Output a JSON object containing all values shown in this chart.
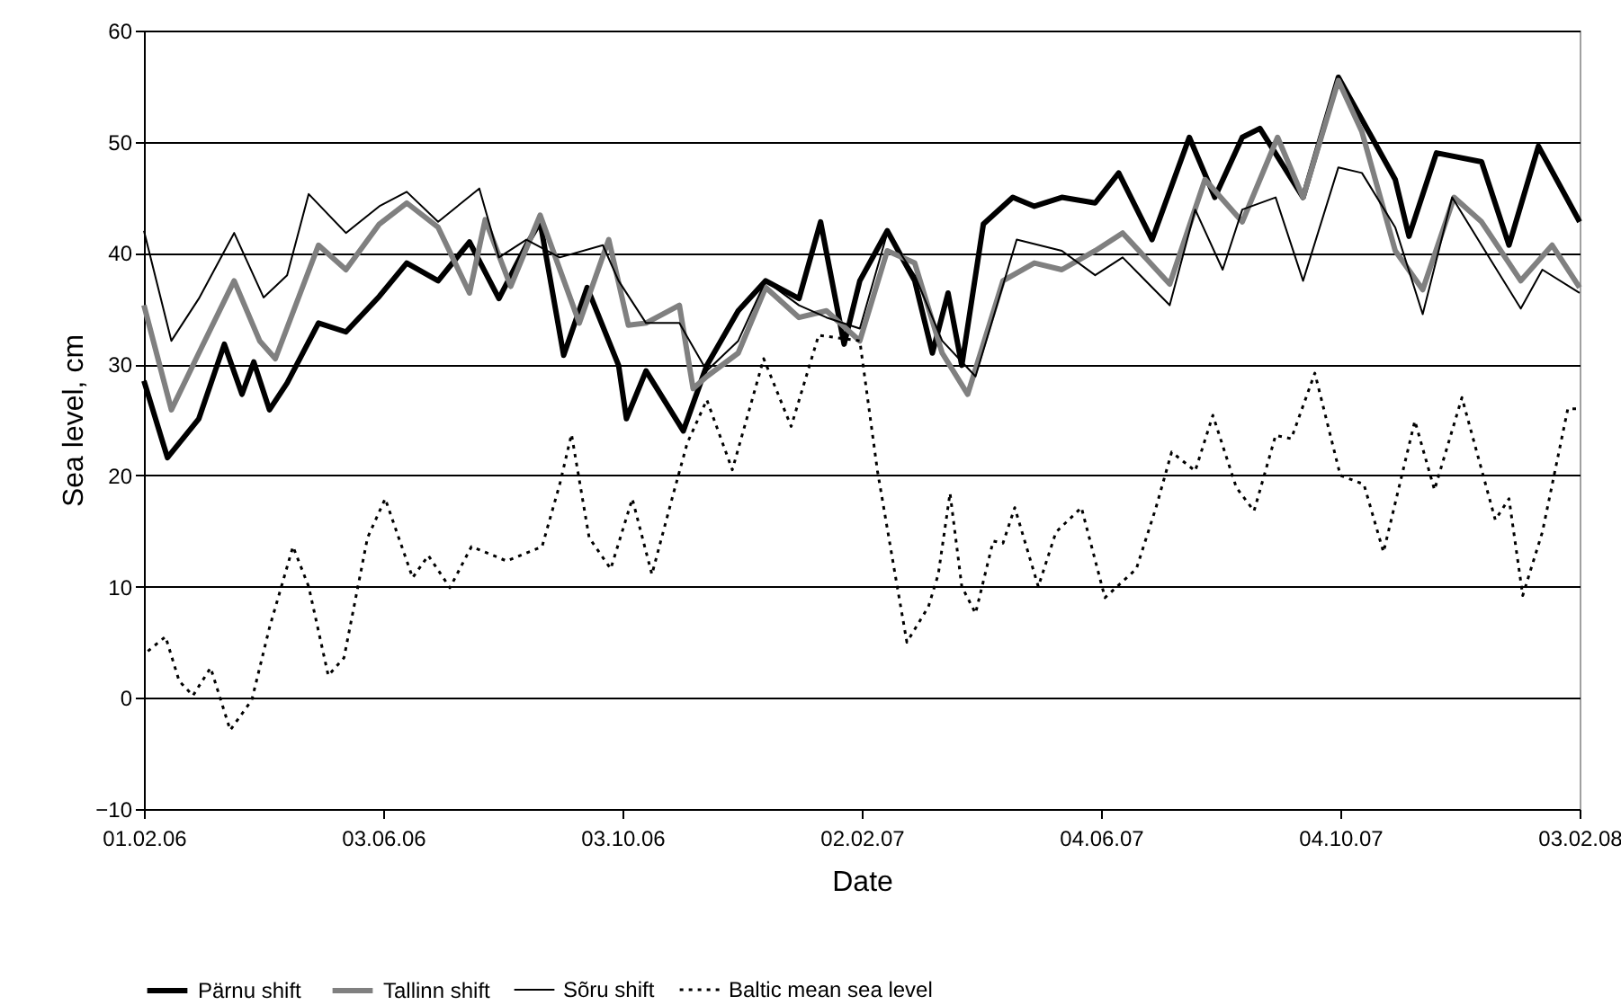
{
  "chart_data": {
    "type": "line",
    "xlabel": "Date",
    "ylabel": "Sea level, cm",
    "ylim": [
      -10,
      60
    ],
    "yticks": [
      -10,
      0,
      10,
      20,
      30,
      40,
      50,
      60
    ],
    "xlim": [
      "2006-02-01",
      "2008-02-03"
    ],
    "xticks": [
      {
        "value": "2006-02-01",
        "label": "01.02.06"
      },
      {
        "value": "2006-06-03",
        "label": "03.06.06"
      },
      {
        "value": "2006-10-03",
        "label": "03.10.06"
      },
      {
        "value": "2007-02-02",
        "label": "02.02.07"
      },
      {
        "value": "2007-06-04",
        "label": "04.06.07"
      },
      {
        "value": "2007-10-04",
        "label": "04.10.07"
      },
      {
        "value": "2008-02-03",
        "label": "03.02.08"
      }
    ],
    "grid": "y",
    "legend": "bottom",
    "marker": "none",
    "series": [
      {
        "name": "Pärnu shift",
        "color": "#000000",
        "line_style": "solid",
        "x": [
          "2006-02-01",
          "2006-02-13",
          "2006-03-01",
          "2006-03-14",
          "2006-03-23",
          "2006-03-29",
          "2006-04-06",
          "2006-04-15",
          "2006-05-01",
          "2006-05-15",
          "2006-06-01",
          "2006-06-15",
          "2006-07-01",
          "2006-07-17",
          "2006-08-01",
          "2006-08-15",
          "2006-08-22",
          "2006-09-03",
          "2006-09-15",
          "2006-10-01",
          "2006-10-05",
          "2006-10-15",
          "2006-11-03",
          "2006-11-15",
          "2006-12-01",
          "2006-12-15",
          "2007-01-01",
          "2007-01-12",
          "2007-01-24",
          "2007-02-01",
          "2007-02-15",
          "2007-03-01",
          "2007-03-10",
          "2007-03-18",
          "2007-03-25",
          "2007-04-05",
          "2007-04-20",
          "2007-05-01",
          "2007-05-15",
          "2007-06-01",
          "2007-06-13",
          "2007-06-30",
          "2007-07-19",
          "2007-08-01",
          "2007-08-15",
          "2007-08-24",
          "2007-09-15",
          "2007-10-03",
          "2007-10-15",
          "2007-11-01",
          "2007-11-08",
          "2007-11-22",
          "2007-12-15",
          "2007-12-29",
          "2008-01-13",
          "2008-02-03"
        ],
        "values": [
          28.5,
          21.6,
          25.1,
          31.8,
          27.3,
          30.2,
          25.9,
          28.3,
          33.7,
          32.9,
          36.1,
          39.1,
          37.5,
          41,
          35.9,
          40.7,
          42.8,
          30.8,
          36.9,
          29.9,
          25.1,
          29.4,
          24,
          29.9,
          34.8,
          37.5,
          35.9,
          42.8,
          31.8,
          37.5,
          42,
          37.5,
          31,
          36.4,
          29.9,
          42.6,
          45,
          44.2,
          45,
          44.5,
          47.2,
          41.2,
          50.4,
          45,
          50.4,
          51.2,
          45,
          55.8,
          52,
          46.6,
          41.5,
          49,
          48.2,
          40.7,
          49.6,
          42.8
        ]
      },
      {
        "name": "Tallinn shift",
        "color": "#808080",
        "line_style": "solid",
        "x": [
          "2006-02-01",
          "2006-02-15",
          "2006-03-01",
          "2006-03-19",
          "2006-04-01",
          "2006-04-09",
          "2006-05-01",
          "2006-05-15",
          "2006-06-01",
          "2006-06-15",
          "2006-07-01",
          "2006-07-17",
          "2006-07-25",
          "2006-08-07",
          "2006-08-22",
          "2006-09-11",
          "2006-09-26",
          "2006-10-06",
          "2006-10-15",
          "2006-11-01",
          "2006-11-08",
          "2006-11-15",
          "2006-12-01",
          "2006-12-15",
          "2007-01-01",
          "2007-01-15",
          "2007-02-01",
          "2007-02-15",
          "2007-03-01",
          "2007-03-15",
          "2007-03-28",
          "2007-04-15",
          "2007-05-01",
          "2007-05-15",
          "2007-06-01",
          "2007-06-15",
          "2007-07-09",
          "2007-07-27",
          "2007-08-15",
          "2007-09-02",
          "2007-09-15",
          "2007-10-03",
          "2007-10-15",
          "2007-11-01",
          "2007-11-15",
          "2007-12-01",
          "2007-12-15",
          "2008-01-04",
          "2008-01-20",
          "2008-02-03"
        ],
        "values": [
          35.3,
          25.9,
          31,
          37.5,
          32.1,
          30.5,
          40.7,
          38.5,
          42.6,
          44.5,
          42.3,
          36.4,
          43,
          37,
          43.4,
          33.7,
          41.2,
          33.5,
          33.7,
          35.3,
          27.8,
          28.9,
          31,
          36.9,
          34.2,
          34.8,
          32.1,
          40.2,
          39.1,
          31,
          27.3,
          37.5,
          39.1,
          38.5,
          40.2,
          41.8,
          37.2,
          46.6,
          42.8,
          50.4,
          45,
          55.5,
          50.9,
          40.2,
          36.7,
          45,
          42.8,
          37.5,
          40.7,
          36.9
        ]
      },
      {
        "name": "Sõru shift",
        "color": "#000000",
        "line_style": "solid",
        "x": [
          "2006-02-01",
          "2006-02-15",
          "2006-03-01",
          "2006-03-19",
          "2006-04-03",
          "2006-04-15",
          "2006-04-26",
          "2006-05-15",
          "2006-06-01",
          "2006-06-15",
          "2006-07-01",
          "2006-07-22",
          "2006-08-01",
          "2006-08-15",
          "2006-09-01",
          "2006-09-23",
          "2006-10-01",
          "2006-10-15",
          "2006-11-01",
          "2006-11-15",
          "2006-12-01",
          "2006-12-15",
          "2007-01-01",
          "2007-01-15",
          "2007-02-01",
          "2007-02-15",
          "2007-03-01",
          "2007-03-15",
          "2007-04-01",
          "2007-04-22",
          "2007-05-15",
          "2007-06-01",
          "2007-06-15",
          "2007-07-09",
          "2007-07-22",
          "2007-08-05",
          "2007-08-15",
          "2007-09-01",
          "2007-09-15",
          "2007-10-03",
          "2007-10-15",
          "2007-11-01",
          "2007-11-15",
          "2007-11-30",
          "2007-12-15",
          "2008-01-04",
          "2008-01-15",
          "2008-02-03"
        ],
        "values": [
          42,
          32.1,
          35.9,
          41.8,
          36,
          38,
          45.3,
          41.8,
          44.2,
          45.5,
          42.8,
          45.8,
          39.6,
          41.2,
          39.6,
          40.7,
          37.5,
          33.7,
          33.7,
          29.4,
          32.1,
          37.5,
          35.3,
          34.2,
          33.2,
          41.8,
          38,
          32.1,
          28.9,
          41.2,
          40.2,
          38,
          39.6,
          35.3,
          43.9,
          38.5,
          43.9,
          45,
          37.5,
          47.7,
          47.2,
          42.3,
          34.5,
          45,
          40.7,
          35,
          38.5,
          36.4
        ]
      },
      {
        "name": "Baltic mean sea level",
        "color": "#000000",
        "line_style": "dotted",
        "x": [
          "2006-02-03",
          "2006-02-12",
          "2006-02-19",
          "2006-02-26",
          "2006-03-07",
          "2006-03-17",
          "2006-03-28",
          "2006-04-06",
          "2006-04-18",
          "2006-04-26",
          "2006-05-06",
          "2006-05-14",
          "2006-05-26",
          "2006-06-04",
          "2006-06-18",
          "2006-06-26",
          "2006-07-07",
          "2006-07-18",
          "2006-08-05",
          "2006-08-23",
          "2006-09-01",
          "2006-09-07",
          "2006-09-16",
          "2006-09-27",
          "2006-10-08",
          "2006-10-18",
          "2006-10-29",
          "2006-11-05",
          "2006-11-15",
          "2006-11-28",
          "2006-12-14",
          "2006-12-28",
          "2007-01-11",
          "2007-02-01",
          "2007-02-10",
          "2007-02-19",
          "2007-02-25",
          "2007-03-08",
          "2007-03-13",
          "2007-03-19",
          "2007-03-25",
          "2007-04-01",
          "2007-04-10",
          "2007-04-15",
          "2007-04-21",
          "2007-05-03",
          "2007-05-12",
          "2007-05-25",
          "2007-06-06",
          "2007-06-22",
          "2007-07-02",
          "2007-07-10",
          "2007-07-22",
          "2007-07-31",
          "2007-08-12",
          "2007-08-21",
          "2007-09-01",
          "2007-09-09",
          "2007-09-21",
          "2007-10-04",
          "2007-10-16",
          "2007-10-26",
          "2007-11-11",
          "2007-11-21",
          "2007-12-05",
          "2007-12-22",
          "2007-12-29",
          "2008-01-05",
          "2008-01-15",
          "2008-01-28",
          "2008-02-02"
        ],
        "values": [
          4.2,
          5.5,
          1.5,
          0.2,
          2.7,
          -2.9,
          -0.2,
          6.3,
          13.6,
          10,
          2,
          3.6,
          14.4,
          17.9,
          10.8,
          12.8,
          9.9,
          13.6,
          12.3,
          13.6,
          19.2,
          23.7,
          14.4,
          11.6,
          17.9,
          11.1,
          18.4,
          22.9,
          26.8,
          20.5,
          30.5,
          24.4,
          32.6,
          32.1,
          20.4,
          11.1,
          5,
          8.2,
          11.1,
          18.4,
          10,
          7.6,
          14.1,
          13.9,
          17.1,
          10,
          14.9,
          17.1,
          9,
          11.6,
          17.1,
          22.1,
          20.4,
          25.4,
          18.9,
          16.8,
          23.6,
          23.3,
          29.2,
          20,
          19.2,
          13.1,
          24.9,
          18.7,
          27,
          16,
          17.9,
          9.2,
          14.9,
          26,
          26
        ]
      }
    ]
  }
}
